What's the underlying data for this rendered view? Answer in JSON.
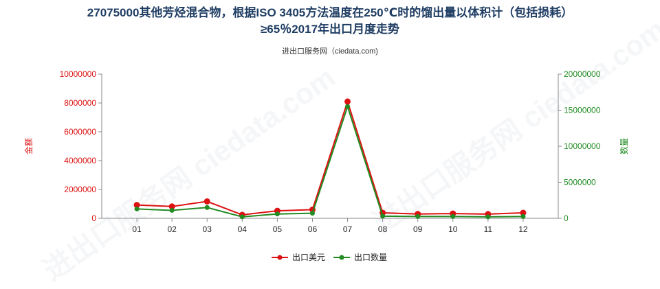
{
  "title_line1": "27075000其他芳烃混合物，根据ISO 3405方法温度在250℃时的馏出量以体积计（包括损耗）",
  "title_line2": "≥65％2017年出口月度走势",
  "source": "进出口服务网（ciedata.com)",
  "watermark": "进出口服务网 ciedata.com",
  "chart_data": {
    "type": "line",
    "categories": [
      "01",
      "02",
      "03",
      "04",
      "05",
      "06",
      "07",
      "08",
      "09",
      "10",
      "11",
      "12"
    ],
    "y_left": {
      "label": "金额",
      "range": [
        0,
        10000000
      ],
      "ticks": [
        "0",
        "2000000",
        "4000000",
        "6000000",
        "8000000",
        "10000000"
      ],
      "color": "#dd1111"
    },
    "y_right": {
      "label": "数量",
      "range": [
        0,
        20000000
      ],
      "ticks": [
        "0",
        "5000000",
        "10000000",
        "15000000",
        "20000000"
      ],
      "color": "#228b22"
    },
    "series": [
      {
        "name": "出口美元",
        "axis": "left",
        "color": "#dd1111",
        "values": [
          920000,
          820000,
          1170000,
          240000,
          520000,
          600000,
          8100000,
          380000,
          300000,
          330000,
          290000,
          380000
        ]
      },
      {
        "name": "出口数量",
        "axis": "right",
        "color": "#228b22",
        "values": [
          1300000,
          1100000,
          1500000,
          200000,
          600000,
          700000,
          15500000,
          300000,
          250000,
          250000,
          200000,
          250000
        ]
      }
    ],
    "legend_position": "bottom-center",
    "grid": false
  }
}
